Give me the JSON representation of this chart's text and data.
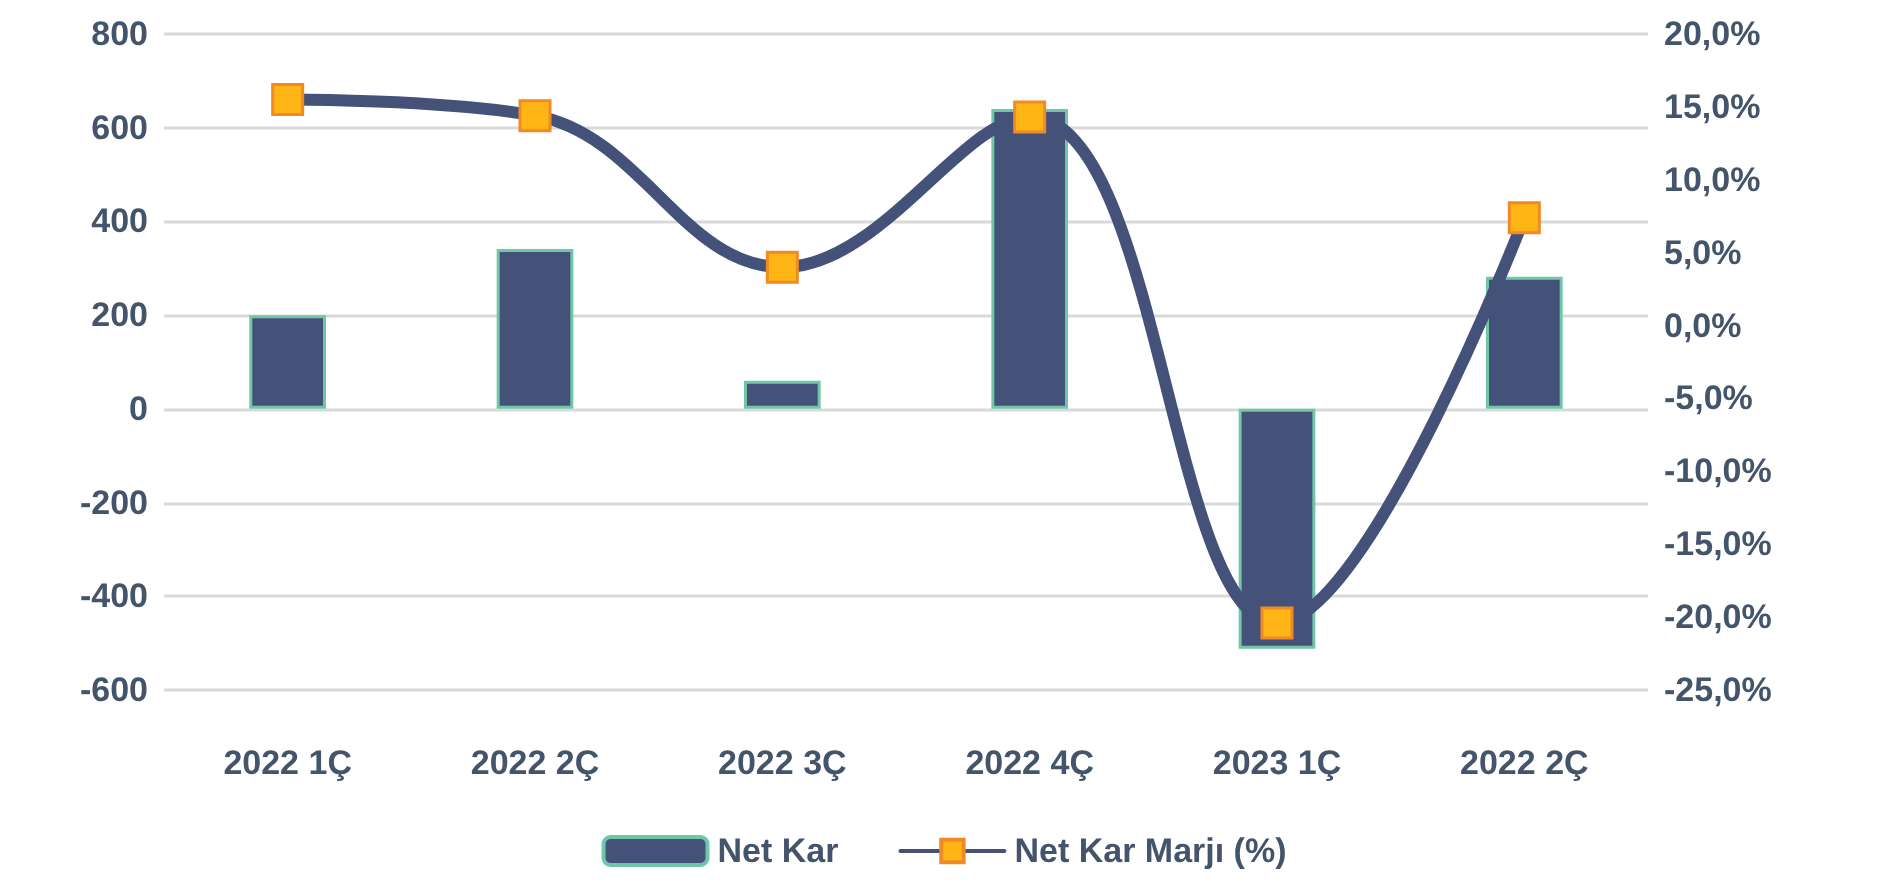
{
  "chart_data": {
    "type": "bar",
    "categories": [
      "2022 1Ç",
      "2022 2Ç",
      "2022 3Ç",
      "2022 4Ç",
      "2023 1Ç",
      "2022 2Ç"
    ],
    "series": [
      {
        "name": "Net Kar",
        "color": "#44527a",
        "values": [
          200,
          341,
          60,
          640,
          -512,
          282
        ]
      },
      {
        "name": "Net Kar Marjı (%)",
        "type": "line",
        "axis": "y2",
        "color": "#44527a",
        "marker": "square",
        "values": [
          15.5,
          14.4,
          4.0,
          14.3,
          -20.4,
          7.4
        ]
      }
    ],
    "ylim": [
      -600,
      800
    ],
    "yticks": [
      -600,
      -400,
      -200,
      0,
      200,
      400,
      600,
      800
    ],
    "y2lim": [
      -25,
      20
    ],
    "y2ticks": [
      {
        "value": -25,
        "label": "-25,0%"
      },
      {
        "value": -20,
        "label": "-20,0%"
      },
      {
        "value": -15,
        "label": "-15,0%"
      },
      {
        "value": -10,
        "label": "-10,0%"
      },
      {
        "value": -5,
        "label": "-5,0%"
      },
      {
        "value": 0,
        "label": "0,0%"
      },
      {
        "value": 5,
        "label": "5,0%"
      },
      {
        "value": 10,
        "label": "10,0%"
      },
      {
        "value": 15,
        "label": "15,0%"
      },
      {
        "value": 20,
        "label": "20,0%"
      }
    ],
    "grid": "y",
    "legend": "bottom"
  }
}
